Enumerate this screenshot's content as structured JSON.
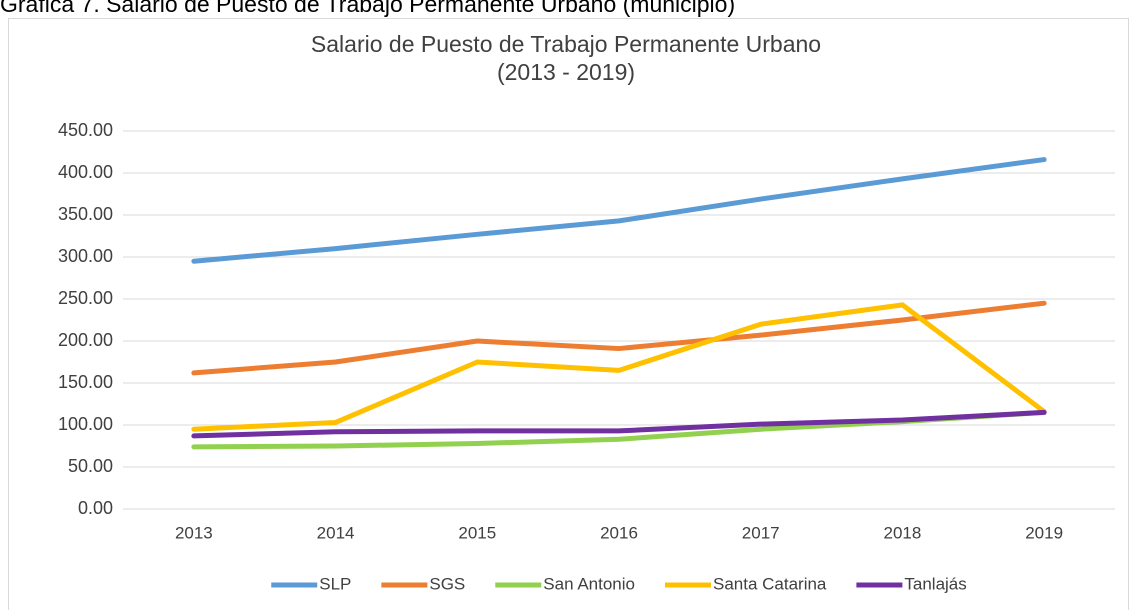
{
  "caption": "Gráfica 7. Salario de Puesto de Trabajo Permanente Urbano (municipio)",
  "chart_data": {
    "type": "line",
    "title": "Salario de Puesto de Trabajo Permanente Urbano",
    "subtitle": "(2013 - 2019)",
    "categories": [
      "2013",
      "2014",
      "2015",
      "2016",
      "2017",
      "2018",
      "2019"
    ],
    "series": [
      {
        "name": "SLP",
        "color": "#5b9bd5",
        "values": [
          295,
          310,
          327,
          343,
          369,
          393,
          416
        ]
      },
      {
        "name": "SGS",
        "color": "#ed7d31",
        "values": [
          162,
          175,
          200,
          191,
          207,
          225,
          245
        ]
      },
      {
        "name": "San Antonio",
        "color": "#92d050",
        "values": [
          74,
          75,
          78,
          83,
          95,
          104,
          115
        ]
      },
      {
        "name": "Santa Catarina",
        "color": "#ffc000",
        "values": [
          95,
          103,
          175,
          165,
          220,
          243,
          116
        ]
      },
      {
        "name": "Tanlajás",
        "color": "#7030a0",
        "values": [
          87,
          92,
          93,
          93,
          101,
          106,
          115
        ]
      }
    ],
    "ylim": [
      0,
      450
    ],
    "yticks": [
      {
        "value": 0,
        "label": "0.00"
      },
      {
        "value": 50,
        "label": "50.00"
      },
      {
        "value": 100,
        "label": "100.00"
      },
      {
        "value": 150,
        "label": "150.00"
      },
      {
        "value": 200,
        "label": "200.00"
      },
      {
        "value": 250,
        "label": "250.00"
      },
      {
        "value": 300,
        "label": "300.00"
      },
      {
        "value": 350,
        "label": "350.00"
      },
      {
        "value": 400,
        "label": "400.00"
      },
      {
        "value": 450,
        "label": "450.00"
      }
    ],
    "grid": true,
    "legend": "bottom"
  }
}
